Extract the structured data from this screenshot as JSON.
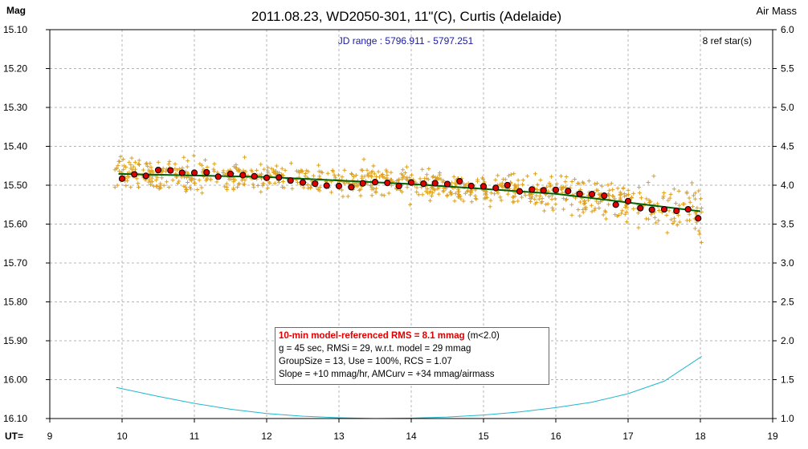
{
  "chart_data": {
    "type": "scatter",
    "title": "2011.08.23, WD2050-301, 11\"(C), Curtis (Adelaide)",
    "ylabel": "Mag",
    "y2label": "Air Mass",
    "xlabel": "UT=",
    "subtitle": "JD range : 5796.911 - 5797.251",
    "ref_stars": "8 ref star(s)",
    "xlim": [
      9,
      19
    ],
    "ylim": [
      15.1,
      16.1
    ],
    "y_inverted": true,
    "y2lim": [
      1.0,
      6.0
    ],
    "x_ticks": [
      "9",
      "10",
      "11",
      "12",
      "13",
      "14",
      "15",
      "16",
      "17",
      "18",
      "19"
    ],
    "y_ticks": [
      "15.10",
      "15.20",
      "15.30",
      "15.40",
      "15.50",
      "15.60",
      "15.70",
      "15.80",
      "15.90",
      "16.00",
      "16.10"
    ],
    "y2_ticks": [
      "6.0",
      "5.5",
      "5.0",
      "4.5",
      "4.0",
      "3.5",
      "3.0",
      "2.5",
      "2.0",
      "1.5",
      "1.0"
    ],
    "grid": true,
    "colors": {
      "raw": "#dda020",
      "binned_fill": "#dd0000",
      "model": "#006400",
      "airmass": "#20b8cc"
    },
    "binned": {
      "x": [
        10.0,
        10.17,
        10.33,
        10.5,
        10.67,
        10.83,
        11.0,
        11.17,
        11.33,
        11.5,
        11.67,
        11.83,
        12.0,
        12.17,
        12.33,
        12.5,
        12.67,
        12.83,
        13.0,
        13.17,
        13.33,
        13.5,
        13.67,
        13.83,
        14.0,
        14.17,
        14.33,
        14.5,
        14.67,
        14.83,
        15.0,
        15.17,
        15.33,
        15.5,
        15.67,
        15.83,
        16.0,
        16.17,
        16.33,
        16.5,
        16.67,
        16.83,
        17.0,
        17.17,
        17.33,
        17.5,
        17.67,
        17.83,
        17.97
      ],
      "y": [
        15.483,
        15.472,
        15.476,
        15.461,
        15.462,
        15.468,
        15.468,
        15.467,
        15.478,
        15.471,
        15.474,
        15.477,
        15.481,
        15.48,
        15.488,
        15.493,
        15.496,
        15.501,
        15.502,
        15.505,
        15.495,
        15.492,
        15.494,
        15.502,
        15.493,
        15.496,
        15.495,
        15.497,
        15.49,
        15.502,
        15.503,
        15.507,
        15.5,
        15.516,
        15.511,
        15.513,
        15.512,
        15.515,
        15.522,
        15.523,
        15.527,
        15.55,
        15.541,
        15.559,
        15.563,
        15.562,
        15.566,
        15.562,
        15.585
      ]
    },
    "model": {
      "x": [
        9.95,
        12.0,
        14.0,
        16.0,
        18.0
      ],
      "y": [
        15.471,
        15.479,
        15.497,
        15.522,
        15.567
      ]
    },
    "airmass": {
      "x": [
        9.92,
        10.5,
        11.0,
        11.5,
        12.0,
        12.5,
        13.0,
        13.5,
        14.0,
        14.5,
        15.0,
        15.5,
        16.0,
        16.5,
        17.0,
        17.5,
        18.02
      ],
      "y": [
        1.4,
        1.285,
        1.195,
        1.12,
        1.065,
        1.03,
        1.01,
        1.0,
        1.005,
        1.02,
        1.045,
        1.085,
        1.14,
        1.21,
        1.32,
        1.48,
        1.8
      ]
    },
    "raw_points": "~900 unbinned measurements scattered around the model curve"
  },
  "info": {
    "line1": "10-min model-referenced RMS = 8.1 mmag",
    "line1_suffix": " (m<2.0)",
    "line2": "g = 45 sec, RMSi = 29, w.r.t. model = 29 mmag",
    "line3": "GroupSize = 13, Use = 100%, RCS = 1.07",
    "line4": "Slope = +10 mmag/hr, AMCurv = +34 mmag/airmass"
  }
}
